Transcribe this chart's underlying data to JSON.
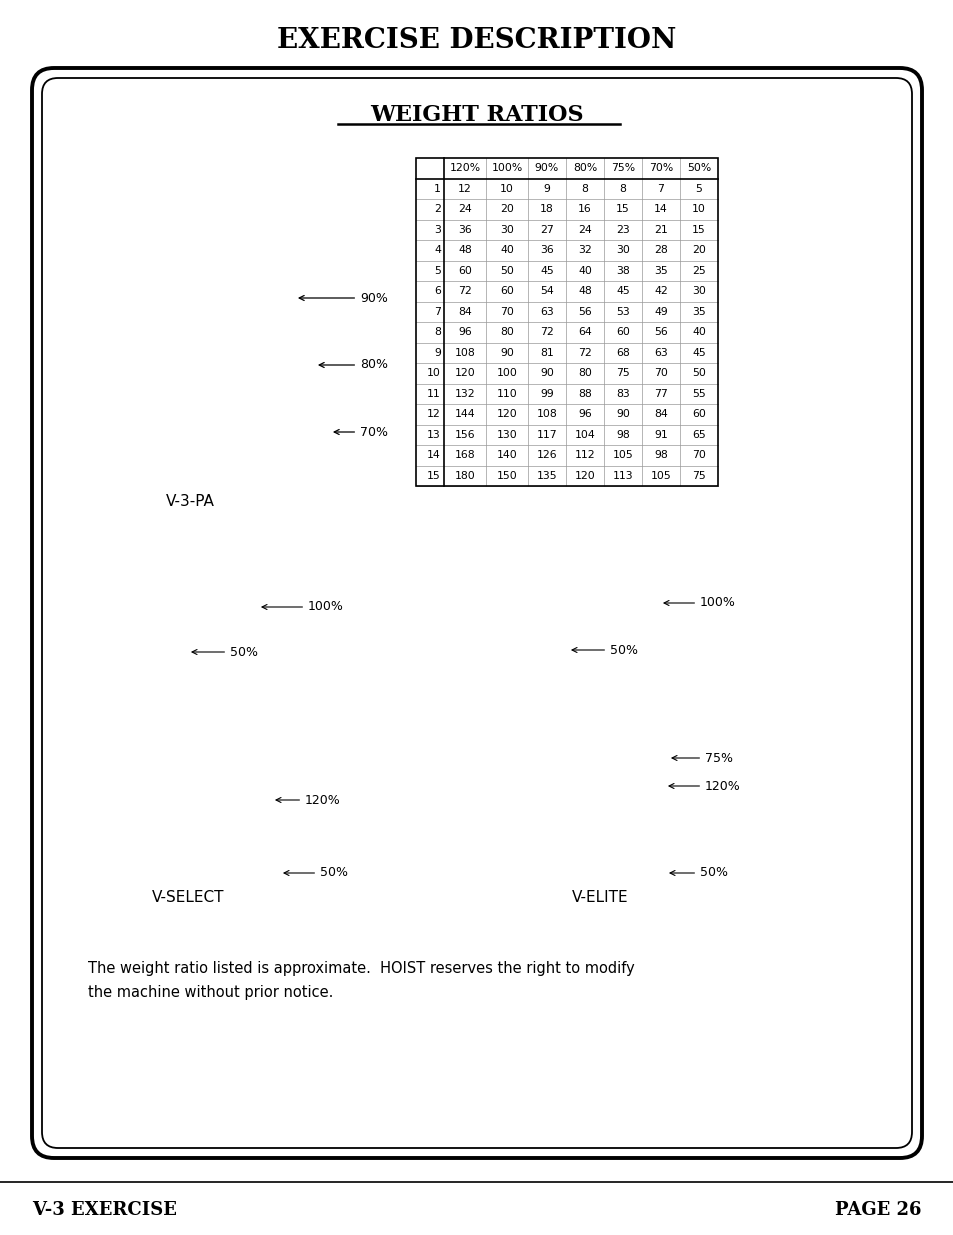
{
  "title": "EXERCISE DESCRIPTION",
  "box_title": "WEIGHT RATIOS",
  "table_headers": [
    "",
    "120%",
    "100%",
    "90%",
    "80%",
    "75%",
    "70%",
    "50%"
  ],
  "table_data": [
    [
      1,
      12,
      10,
      9,
      8,
      8,
      7,
      5
    ],
    [
      2,
      24,
      20,
      18,
      16,
      15,
      14,
      10
    ],
    [
      3,
      36,
      30,
      27,
      24,
      23,
      21,
      15
    ],
    [
      4,
      48,
      40,
      36,
      32,
      30,
      28,
      20
    ],
    [
      5,
      60,
      50,
      45,
      40,
      38,
      35,
      25
    ],
    [
      6,
      72,
      60,
      54,
      48,
      45,
      42,
      30
    ],
    [
      7,
      84,
      70,
      63,
      56,
      53,
      49,
      35
    ],
    [
      8,
      96,
      80,
      72,
      64,
      60,
      56,
      40
    ],
    [
      9,
      108,
      90,
      81,
      72,
      68,
      63,
      45
    ],
    [
      10,
      120,
      100,
      90,
      80,
      75,
      70,
      50
    ],
    [
      11,
      132,
      110,
      99,
      88,
      83,
      77,
      55
    ],
    [
      12,
      144,
      120,
      108,
      96,
      90,
      84,
      60
    ],
    [
      13,
      156,
      130,
      117,
      104,
      98,
      91,
      65
    ],
    [
      14,
      168,
      140,
      126,
      112,
      105,
      98,
      70
    ],
    [
      15,
      180,
      150,
      135,
      120,
      113,
      105,
      75
    ]
  ],
  "vselect_label": "V-SELECT",
  "velite_label": "V-ELITE",
  "vpa_label": "V-3-PA",
  "footer_text_line1": "The weight ratio listed is approximate.  HOIST reserves the right to modify",
  "footer_text_line2": "the machine without prior notice.",
  "bottom_left": "V-3 EXERCISE",
  "bottom_right": "PAGE 26",
  "annotation_90": "90%",
  "annotation_80": "80%",
  "annotation_70": "70%",
  "annotation_100_vselect": "100%",
  "annotation_50_vselect_top": "50%",
  "annotation_120_vselect": "120%",
  "annotation_50_vselect_bottom": "50%",
  "annotation_50_velite_top": "50%",
  "annotation_100_velite": "100%",
  "annotation_75_velite": "75%",
  "annotation_120_velite": "120%",
  "annotation_50_velite_bottom": "50%",
  "bg_color": "#ffffff",
  "text_color": "#000000",
  "border_color": "#000000"
}
